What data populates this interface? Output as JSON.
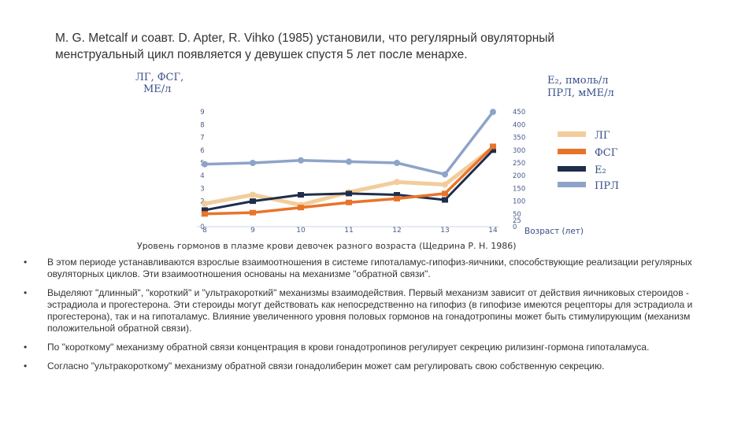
{
  "header": {
    "line1": "M. G. Metcalf и соавт. D. Apter, R. Vihko (1985) установили, что регулярный овуляторный",
    "line2": "менструальный цикл появляется у девушек спустя 5 лет после менархе."
  },
  "colors": {
    "lg": "#f2cd9c",
    "fsg": "#e8742a",
    "e2": "#1f2d4a",
    "prl": "#8ea3c8",
    "axis_text": "#3a4f8a"
  },
  "chart_data": {
    "type": "line",
    "x": [
      8,
      9,
      10,
      11,
      12,
      13,
      14
    ],
    "xlabel": "Возраст (лет)",
    "ylabel_left_line1": "ЛГ, ФСГ,",
    "ylabel_left_line2": "МЕ/л",
    "ylabel_right_line1": "E₂, пмоль/л",
    "ylabel_right_line2": "ПРЛ, мМЕ/л",
    "left_ticks": [
      "0",
      "1",
      "2",
      "3",
      "4",
      "5",
      "6",
      "7",
      "8",
      "9"
    ],
    "right_ticks": [
      "0",
      "25",
      "50",
      "100",
      "150",
      "200",
      "250",
      "300",
      "350",
      "400",
      "450"
    ],
    "ylim": [
      0,
      9
    ],
    "series": [
      {
        "name": "ЛГ",
        "values": [
          1.8,
          2.5,
          1.7,
          2.7,
          3.5,
          3.3,
          6.2
        ]
      },
      {
        "name": "ФСГ",
        "values": [
          1.0,
          1.1,
          1.5,
          1.9,
          2.2,
          2.6,
          6.3
        ]
      },
      {
        "name": "E₂",
        "values": [
          1.3,
          2.0,
          2.5,
          2.6,
          2.5,
          2.1,
          6.0
        ]
      },
      {
        "name": "ПРЛ",
        "values": [
          4.9,
          5.0,
          5.2,
          5.1,
          5.0,
          4.1,
          9.0
        ]
      }
    ],
    "caption": "Уровень гормонов в плазме крови девочек разного возраста (Щедрина Р. Н. 1986)"
  },
  "bullets": [
    "В этом периоде устанавливаются взрослые взаимоотношения в системе гипоталамус-гипофиз-яичники, способствующие реализации регулярных овуляторных циклов. Эти взаимоотношения основаны на механизме \"обратной связи\".",
    " Выделяют \"длинный\", \"короткий\" и \"ультракороткий\" механизмы взаимодействия. Первый механизм зависит от действия яичниковых стероидов - эстрадиола и прогестерона. Эти стероиды могут действовать как непосредственно на гипофиз (в гипофизе имеются рецепторы для эстрадиола и прогестерона), так и на гипоталамус. Влияние увеличенного уровня половых гормонов на гонадотропины может быть стимулирующим (механизм положительной обратной связи).",
    "По \"короткому\" механизму обратной связи концентрация в крови гонадотропинов регулирует секрецию рилизинг-гормона гипоталамуса.",
    "Согласно \"ультракороткому\" механизму обратной связи гонадолиберин может сам регулировать свою собственную секрецию."
  ]
}
